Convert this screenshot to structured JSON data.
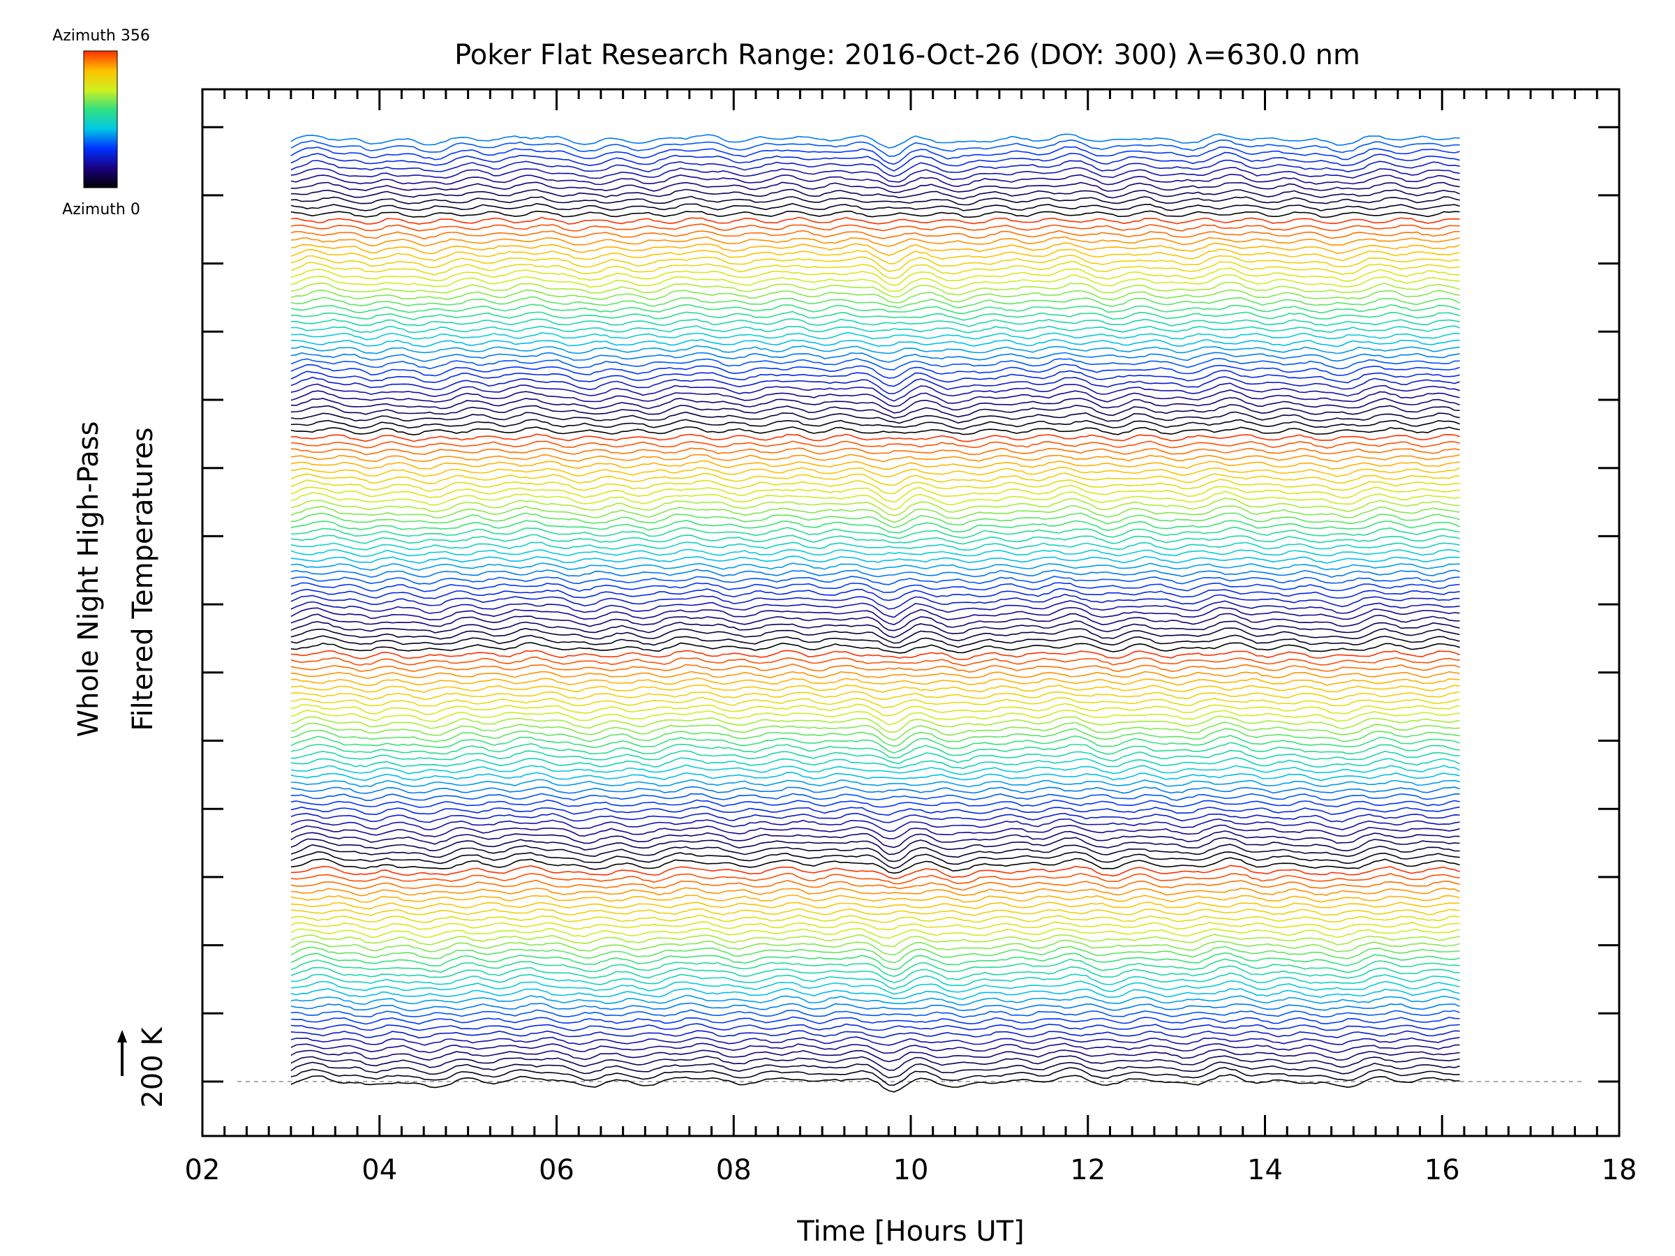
{
  "chart_data": {
    "type": "line",
    "title": "Poker Flat Research Range: 2016-Oct-26 (DOY: 300) λ=630.0 nm",
    "xlabel": "Time [Hours UT]",
    "ylabel_lines": [
      "Whole Night High-Pass",
      "Filtered Temperatures"
    ],
    "xlim": [
      2,
      18
    ],
    "xticks": [
      "02",
      "04",
      "06",
      "08",
      "10",
      "12",
      "14",
      "16",
      "18"
    ],
    "x_tick_values": [
      2,
      4,
      6,
      8,
      10,
      12,
      14,
      16,
      18
    ],
    "time_range": [
      3.0,
      16.2
    ],
    "scale_bar_label": "200 K",
    "scale_bar_kelvin": 200,
    "colorbar": {
      "label_top": "Azimuth 356",
      "label_bottom": "Azimuth 0",
      "colors": [
        "#000000",
        "#1a0080",
        "#0030ff",
        "#00c8e6",
        "#30e080",
        "#d0f020",
        "#ffc000",
        "#ff3000"
      ]
    },
    "trace_count": 140,
    "traces_per_azimuth_cycle": 32,
    "grid": false,
    "legend": "none",
    "baseline_reference": "dashed gray line at the first trace baseline"
  }
}
